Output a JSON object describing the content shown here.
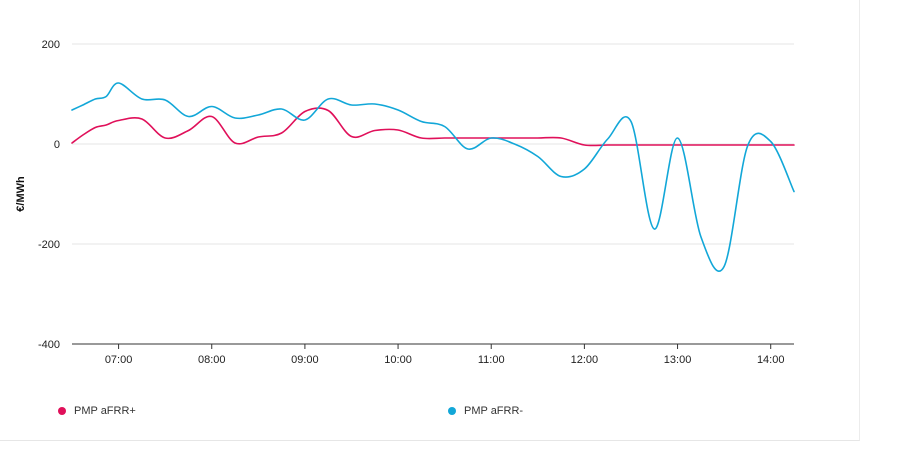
{
  "chart_data": {
    "type": "line",
    "ylabel": "€/MWh",
    "ylim": [
      -400,
      200
    ],
    "yticks": [
      200,
      0,
      -200,
      -400
    ],
    "xlim": [
      "06:30",
      "14:15"
    ],
    "xticks": [
      "07:00",
      "08:00",
      "09:00",
      "10:00",
      "11:00",
      "12:00",
      "13:00",
      "14:00"
    ],
    "grid": true,
    "legend_position": "bottom",
    "series": [
      {
        "name": "PMP aFRR+",
        "color": "#e0105a",
        "points": [
          [
            "06:30",
            2
          ],
          [
            "06:37",
            18
          ],
          [
            "06:45",
            33
          ],
          [
            "06:52",
            38
          ],
          [
            "07:00",
            47
          ],
          [
            "07:15",
            50
          ],
          [
            "07:30",
            12
          ],
          [
            "07:45",
            27
          ],
          [
            "08:00",
            55
          ],
          [
            "08:15",
            2
          ],
          [
            "08:30",
            14
          ],
          [
            "08:45",
            22
          ],
          [
            "09:00",
            65
          ],
          [
            "09:15",
            67
          ],
          [
            "09:30",
            15
          ],
          [
            "09:45",
            27
          ],
          [
            "10:00",
            28
          ],
          [
            "10:15",
            12
          ],
          [
            "10:30",
            12
          ],
          [
            "10:45",
            12
          ],
          [
            "11:00",
            12
          ],
          [
            "11:15",
            12
          ],
          [
            "11:30",
            12
          ],
          [
            "11:45",
            12
          ],
          [
            "12:00",
            -2
          ],
          [
            "12:15",
            -2
          ],
          [
            "12:30",
            -2
          ],
          [
            "12:45",
            -2
          ],
          [
            "13:00",
            -2
          ],
          [
            "13:15",
            -2
          ],
          [
            "13:30",
            -2
          ],
          [
            "13:45",
            -2
          ],
          [
            "14:00",
            -2
          ],
          [
            "14:15",
            -2
          ]
        ]
      },
      {
        "name": "PMP aFRR-",
        "color": "#12a7d8",
        "points": [
          [
            "06:30",
            68
          ],
          [
            "06:37",
            78
          ],
          [
            "06:45",
            90
          ],
          [
            "06:52",
            95
          ],
          [
            "07:00",
            122
          ],
          [
            "07:15",
            90
          ],
          [
            "07:30",
            88
          ],
          [
            "07:45",
            55
          ],
          [
            "08:00",
            75
          ],
          [
            "08:15",
            52
          ],
          [
            "08:30",
            58
          ],
          [
            "08:45",
            70
          ],
          [
            "09:00",
            48
          ],
          [
            "09:15",
            90
          ],
          [
            "09:30",
            78
          ],
          [
            "09:45",
            80
          ],
          [
            "10:00",
            68
          ],
          [
            "10:15",
            45
          ],
          [
            "10:30",
            35
          ],
          [
            "10:45",
            -10
          ],
          [
            "11:00",
            12
          ],
          [
            "11:15",
            0
          ],
          [
            "11:30",
            -25
          ],
          [
            "11:45",
            -65
          ],
          [
            "12:00",
            -50
          ],
          [
            "12:15",
            10
          ],
          [
            "12:30",
            45
          ],
          [
            "12:45",
            -170
          ],
          [
            "13:00",
            12
          ],
          [
            "13:15",
            -185
          ],
          [
            "13:30",
            -245
          ],
          [
            "13:45",
            -5
          ],
          [
            "14:00",
            5
          ],
          [
            "14:15",
            -95
          ]
        ]
      }
    ]
  }
}
